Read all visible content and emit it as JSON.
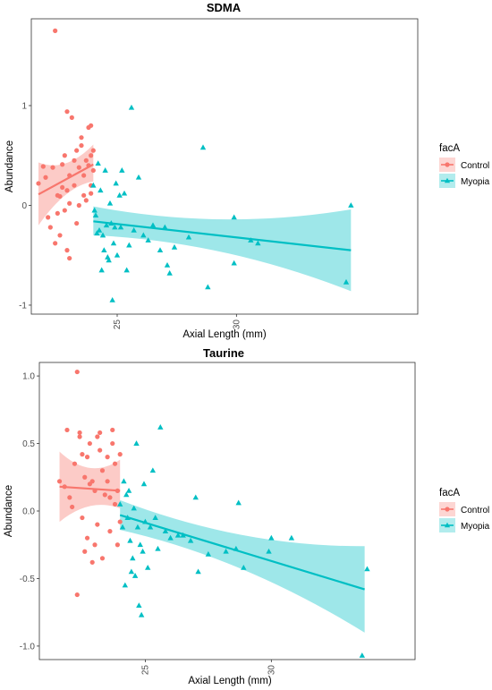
{
  "chart_data": [
    {
      "type": "scatter",
      "title": "SDMA",
      "xlabel": "Axial Length (mm)",
      "ylabel": "Abundance",
      "xlim": [
        21.4,
        37.6
      ],
      "ylim": [
        -1.09,
        1.87
      ],
      "xticks": [
        25,
        30
      ],
      "xtick_labels": [
        "25",
        "30"
      ],
      "yticks": [
        -1,
        0,
        1
      ],
      "ytick_labels": [
        "-1",
        "0",
        "1"
      ],
      "grid": false,
      "legend": {
        "title": "facA",
        "position": "right",
        "entries": [
          "Control",
          "Myopia"
        ]
      },
      "series": [
        {
          "name": "Control",
          "marker": "circle",
          "color": "#F8766D",
          "points": [
            [
              22.4,
              1.75
            ],
            [
              21.7,
              0.22
            ],
            [
              21.9,
              0.39
            ],
            [
              22.0,
              0.28
            ],
            [
              22.1,
              -0.12
            ],
            [
              22.2,
              -0.22
            ],
            [
              22.3,
              0.38
            ],
            [
              22.4,
              -0.38
            ],
            [
              22.5,
              -0.08
            ],
            [
              22.5,
              0.1
            ],
            [
              22.6,
              0.09
            ],
            [
              22.6,
              -0.3
            ],
            [
              22.7,
              0.41
            ],
            [
              22.7,
              0.18
            ],
            [
              22.8,
              0.5
            ],
            [
              22.8,
              -0.05
            ],
            [
              22.9,
              0.94
            ],
            [
              22.9,
              0.15
            ],
            [
              22.9,
              -0.45
            ],
            [
              23.0,
              -0.53
            ],
            [
              23.0,
              0.3
            ],
            [
              23.0,
              0.02
            ],
            [
              23.1,
              0.88
            ],
            [
              23.2,
              0.45
            ],
            [
              23.2,
              0.2
            ],
            [
              23.3,
              -0.18
            ],
            [
              23.3,
              0.55
            ],
            [
              23.4,
              0.38
            ],
            [
              23.4,
              0.0
            ],
            [
              23.5,
              0.6
            ],
            [
              23.5,
              0.68
            ],
            [
              23.6,
              0.3
            ],
            [
              23.6,
              0.1
            ],
            [
              23.7,
              0.45
            ],
            [
              23.7,
              0.05
            ],
            [
              23.8,
              0.78
            ],
            [
              23.8,
              0.4
            ],
            [
              23.9,
              0.8
            ],
            [
              23.9,
              0.5
            ],
            [
              23.9,
              0.12
            ],
            [
              23.9,
              0.2
            ],
            [
              24.0,
              0.55
            ],
            [
              24.0,
              0.35
            ]
          ]
        },
        {
          "name": "Myopia",
          "marker": "triangle",
          "color": "#00BFC4",
          "points": [
            [
              24.0,
              0.2
            ],
            [
              24.05,
              -0.05
            ],
            [
              24.1,
              -0.1
            ],
            [
              24.15,
              -0.28
            ],
            [
              24.2,
              0.42
            ],
            [
              24.25,
              -0.25
            ],
            [
              24.3,
              0.15
            ],
            [
              24.35,
              -0.65
            ],
            [
              24.4,
              -0.3
            ],
            [
              24.45,
              -0.45
            ],
            [
              24.5,
              0.35
            ],
            [
              24.55,
              -0.2
            ],
            [
              24.6,
              -0.52
            ],
            [
              24.65,
              -0.55
            ],
            [
              24.7,
              0.02
            ],
            [
              24.75,
              -0.18
            ],
            [
              24.8,
              -0.95
            ],
            [
              24.85,
              -0.38
            ],
            [
              24.9,
              -0.22
            ],
            [
              24.95,
              0.22
            ],
            [
              25.0,
              -0.5
            ],
            [
              25.1,
              0.1
            ],
            [
              25.15,
              -0.22
            ],
            [
              25.2,
              0.35
            ],
            [
              25.3,
              0.12
            ],
            [
              25.4,
              -0.65
            ],
            [
              25.5,
              -0.4
            ],
            [
              25.6,
              0.98
            ],
            [
              25.7,
              -0.25
            ],
            [
              25.9,
              0.28
            ],
            [
              26.1,
              -0.3
            ],
            [
              26.3,
              -0.35
            ],
            [
              26.5,
              -0.2
            ],
            [
              26.8,
              -0.45
            ],
            [
              27.0,
              -0.22
            ],
            [
              27.1,
              -0.6
            ],
            [
              27.2,
              -0.68
            ],
            [
              27.4,
              -0.42
            ],
            [
              28.0,
              -0.32
            ],
            [
              28.6,
              0.58
            ],
            [
              28.8,
              -0.82
            ],
            [
              29.9,
              -0.58
            ],
            [
              29.9,
              -0.12
            ],
            [
              30.6,
              -0.35
            ],
            [
              30.9,
              -0.38
            ],
            [
              34.6,
              -0.77
            ],
            [
              34.8,
              0.0
            ]
          ]
        }
      ],
      "fits": [
        {
          "name": "Control",
          "x": [
            21.7,
            24.0
          ],
          "y": [
            0.11,
            0.41
          ],
          "band_lower": [
            -0.2,
            0.24
          ],
          "band_upper": [
            0.43,
            0.61
          ]
        },
        {
          "name": "Myopia",
          "x": [
            24.0,
            34.8
          ],
          "y": [
            -0.16,
            -0.45
          ],
          "band_lower": [
            -0.3,
            -0.86
          ],
          "band_upper": [
            -0.01,
            -0.04
          ]
        }
      ]
    },
    {
      "type": "scatter",
      "title": "Taurine",
      "xlabel": "Axial Length (mm)",
      "ylabel": "Abundance",
      "xlim": [
        20.8,
        35.7
      ],
      "ylim": [
        -1.1,
        1.1
      ],
      "xticks": [
        25,
        30
      ],
      "xtick_labels": [
        "25",
        "30"
      ],
      "yticks": [
        -1.0,
        -0.5,
        0.0,
        0.5,
        1.0
      ],
      "ytick_labels": [
        "-1.0",
        "-0.5",
        "0.0",
        "0.5",
        "1.0"
      ],
      "grid": false,
      "legend": {
        "title": "facA",
        "position": "right",
        "entries": [
          "Control",
          "Myopia"
        ]
      },
      "series": [
        {
          "name": "Control",
          "marker": "circle",
          "color": "#F8766D",
          "points": [
            [
              22.3,
              1.03
            ],
            [
              21.6,
              0.22
            ],
            [
              21.8,
              0.18
            ],
            [
              21.9,
              0.6
            ],
            [
              22.0,
              0.1
            ],
            [
              22.1,
              0.03
            ],
            [
              22.2,
              0.35
            ],
            [
              22.3,
              -0.62
            ],
            [
              22.4,
              0.55
            ],
            [
              22.4,
              0.58
            ],
            [
              22.5,
              -0.05
            ],
            [
              22.5,
              0.42
            ],
            [
              22.6,
              0.25
            ],
            [
              22.6,
              -0.3
            ],
            [
              22.7,
              -0.2
            ],
            [
              22.7,
              0.4
            ],
            [
              22.8,
              0.2
            ],
            [
              22.8,
              0.5
            ],
            [
              22.9,
              0.22
            ],
            [
              22.9,
              -0.38
            ],
            [
              23.0,
              0.15
            ],
            [
              23.0,
              -0.25
            ],
            [
              23.1,
              0.55
            ],
            [
              23.1,
              -0.1
            ],
            [
              23.2,
              0.45
            ],
            [
              23.2,
              0.58
            ],
            [
              23.3,
              0.3
            ],
            [
              23.3,
              -0.35
            ],
            [
              23.4,
              0.12
            ],
            [
              23.5,
              0.22
            ],
            [
              23.5,
              0.4
            ],
            [
              23.6,
              -0.15
            ],
            [
              23.6,
              0.1
            ],
            [
              23.7,
              0.6
            ],
            [
              23.7,
              0.5
            ],
            [
              23.8,
              0.05
            ],
            [
              23.8,
              0.35
            ],
            [
              23.9,
              -0.25
            ],
            [
              23.9,
              0.15
            ],
            [
              24.0,
              0.42
            ],
            [
              24.0,
              -0.08
            ]
          ]
        },
        {
          "name": "Myopia",
          "marker": "triangle",
          "color": "#00BFC4",
          "points": [
            [
              24.0,
              0.05
            ],
            [
              24.1,
              -0.12
            ],
            [
              24.15,
              0.22
            ],
            [
              24.2,
              -0.55
            ],
            [
              24.25,
              0.12
            ],
            [
              24.3,
              -0.05
            ],
            [
              24.35,
              0.15
            ],
            [
              24.4,
              -0.22
            ],
            [
              24.45,
              -0.45
            ],
            [
              24.5,
              -0.35
            ],
            [
              24.55,
              0.02
            ],
            [
              24.6,
              -0.48
            ],
            [
              24.65,
              0.5
            ],
            [
              24.7,
              -0.12
            ],
            [
              24.75,
              -0.7
            ],
            [
              24.8,
              -0.25
            ],
            [
              24.85,
              -0.77
            ],
            [
              24.9,
              -0.3
            ],
            [
              24.95,
              0.2
            ],
            [
              25.0,
              -0.08
            ],
            [
              25.1,
              -0.42
            ],
            [
              25.2,
              -0.12
            ],
            [
              25.3,
              0.3
            ],
            [
              25.4,
              -0.05
            ],
            [
              25.5,
              -0.28
            ],
            [
              25.6,
              0.62
            ],
            [
              25.8,
              -0.15
            ],
            [
              26.0,
              -0.2
            ],
            [
              26.3,
              -0.18
            ],
            [
              26.5,
              -0.18
            ],
            [
              26.8,
              -0.22
            ],
            [
              27.0,
              0.1
            ],
            [
              27.1,
              -0.45
            ],
            [
              27.5,
              -0.32
            ],
            [
              28.2,
              -0.3
            ],
            [
              28.6,
              -0.28
            ],
            [
              28.7,
              0.06
            ],
            [
              28.9,
              -0.42
            ],
            [
              29.9,
              -0.3
            ],
            [
              30.0,
              -0.2
            ],
            [
              30.8,
              -0.2
            ],
            [
              33.6,
              -1.07
            ],
            [
              33.8,
              -0.43
            ]
          ]
        }
      ],
      "fits": [
        {
          "name": "Control",
          "x": [
            21.6,
            24.0
          ],
          "y": [
            0.18,
            0.15
          ],
          "band_lower": [
            -0.08,
            0.02
          ],
          "band_upper": [
            0.44,
            0.38
          ]
        },
        {
          "name": "Myopia",
          "x": [
            24.0,
            33.7
          ],
          "y": [
            -0.03,
            -0.58
          ],
          "band_lower": [
            -0.14,
            -0.9
          ],
          "band_upper": [
            0.08,
            -0.26
          ]
        }
      ]
    }
  ]
}
